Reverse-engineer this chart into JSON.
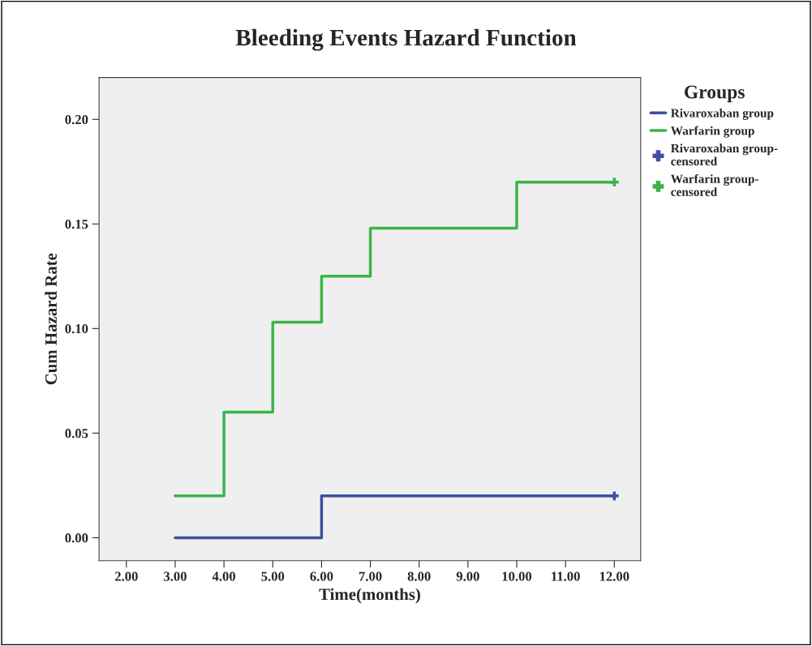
{
  "chart_data": {
    "type": "step",
    "title": "Bleeding Events Hazard Function",
    "xlabel": "Time(months)",
    "ylabel": "Cum Hazard Rate",
    "legend_title": "Groups",
    "legend": "right",
    "xlim": [
      1.44,
      12.54
    ],
    "xticks": [
      {
        "value": 2,
        "label": "2.00"
      },
      {
        "value": 3,
        "label": "3.00"
      },
      {
        "value": 4,
        "label": "4.00"
      },
      {
        "value": 5,
        "label": "5.00"
      },
      {
        "value": 6,
        "label": "6.00"
      },
      {
        "value": 7,
        "label": "7.00"
      },
      {
        "value": 8,
        "label": "8.00"
      },
      {
        "value": 9,
        "label": "9.00"
      },
      {
        "value": 10,
        "label": "10.00"
      },
      {
        "value": 11,
        "label": "11.00"
      },
      {
        "value": 12,
        "label": "12.00"
      }
    ],
    "ylim": [
      -0.011,
      0.22
    ],
    "yticks": [
      {
        "value": 0,
        "label": "0.00"
      },
      {
        "value": 0.05,
        "label": "0.05"
      },
      {
        "value": 0.1,
        "label": "0.10"
      },
      {
        "value": 0.15,
        "label": "0.15"
      },
      {
        "value": 0.2,
        "label": "0.20"
      }
    ],
    "grid": false,
    "series": [
      {
        "name": "Rivaroxaban group",
        "color": "#3c4fa0",
        "x": [
          3,
          6,
          12
        ],
        "values": [
          0.0,
          0.02,
          0.02
        ]
      },
      {
        "name": "Warfarin group",
        "color": "#3cb44a",
        "x": [
          3,
          4,
          5,
          6,
          7,
          10,
          12
        ],
        "values": [
          0.02,
          0.06,
          0.103,
          0.125,
          0.148,
          0.17,
          0.17
        ]
      },
      {
        "name": "Rivaroxaban group-\ncensored",
        "type": "scatter",
        "marker": "cross",
        "color": "#3c4fa0",
        "x": [
          12
        ],
        "values": [
          0.02
        ]
      },
      {
        "name": "Warfarin group-\ncensored",
        "type": "scatter",
        "marker": "cross",
        "color": "#3cb44a",
        "x": [
          12
        ],
        "values": [
          0.17
        ]
      }
    ]
  }
}
